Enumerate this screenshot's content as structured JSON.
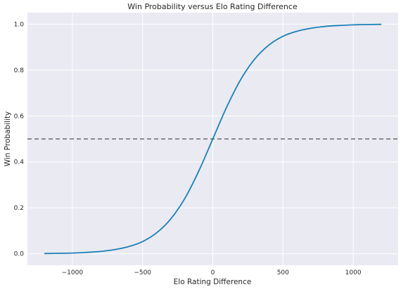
{
  "chart_data": {
    "type": "line",
    "title": "Win Probability versus Elo Rating Difference",
    "xlabel": "Elo Rating Difference",
    "ylabel": "Win Probability",
    "xlim": [
      -1320,
      1320
    ],
    "ylim": [
      -0.05,
      1.05
    ],
    "xticks": [
      -1000,
      -500,
      0,
      500,
      1000
    ],
    "xtick_labels": [
      "−1000",
      "−500",
      "0",
      "500",
      "1000"
    ],
    "yticks": [
      0.0,
      0.2,
      0.4,
      0.6,
      0.8,
      1.0
    ],
    "ytick_labels": [
      "0.0",
      "0.2",
      "0.4",
      "0.6",
      "0.8",
      "1.0"
    ],
    "grid": true,
    "style": "seaborn-darkgrid",
    "series": [
      {
        "color": "#1a80b6",
        "x": [
          -1200,
          -1100,
          -1000,
          -900,
          -800,
          -700,
          -600,
          -500,
          -400,
          -300,
          -200,
          -100,
          0,
          100,
          200,
          300,
          400,
          500,
          600,
          700,
          800,
          900,
          1000,
          1100,
          1200
        ],
        "y": [
          0.001,
          0.002,
          0.003,
          0.006,
          0.01,
          0.018,
          0.031,
          0.053,
          0.091,
          0.151,
          0.24,
          0.36,
          0.5,
          0.64,
          0.76,
          0.849,
          0.909,
          0.947,
          0.969,
          0.982,
          0.99,
          0.994,
          0.997,
          0.998,
          0.999
        ]
      }
    ],
    "reference_lines": [
      {
        "orientation": "horizontal",
        "y": 0.5,
        "style": "dashed",
        "color": "#6b6b6b"
      }
    ]
  },
  "colors": {
    "plot_background": "#eaeaf2",
    "grid": "#ffffff",
    "line": "#1a80b6",
    "reference": "#6b6b6b"
  }
}
